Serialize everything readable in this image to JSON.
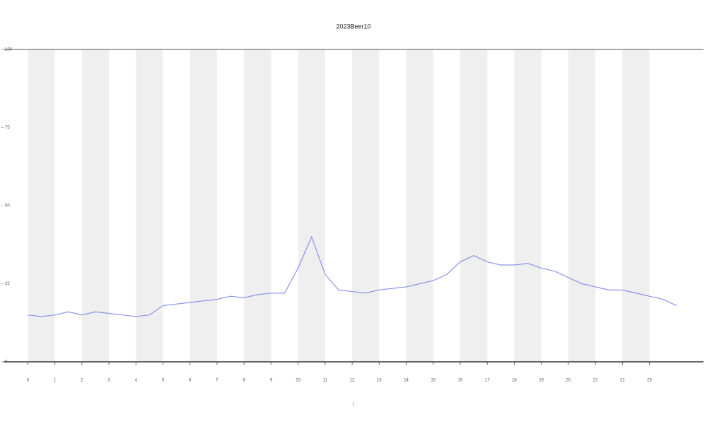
{
  "chart_data": {
    "type": "line",
    "title": "2023Beer10",
    "x_label": "t",
    "xlim": [
      -0.9,
      25
    ],
    "xticks": [
      0,
      1,
      2,
      3,
      4,
      5,
      6,
      7,
      8,
      9,
      10,
      11,
      12,
      13,
      14,
      15,
      16,
      17,
      18,
      19,
      20,
      21,
      22,
      23
    ],
    "ylim": [
      0,
      100
    ],
    "yticks": [
      0,
      25,
      50,
      75,
      100
    ],
    "shaded_bands": true,
    "series": [
      {
        "color": "#6f78e8",
        "x": [
          0,
          0.5,
          1,
          1.5,
          2,
          2.5,
          3,
          3.5,
          4,
          4.5,
          5,
          5.5,
          6,
          6.5,
          7,
          7.5,
          8,
          8.5,
          9,
          9.5,
          10,
          10.5,
          11,
          11.5,
          12,
          12.5,
          13,
          13.5,
          14,
          14.5,
          15,
          15.5,
          16,
          16.5,
          17,
          17.5,
          18,
          18.5,
          19,
          19.5,
          20,
          20.5,
          21,
          21.5,
          22,
          22.5,
          23,
          23.5,
          24
        ],
        "values": [
          15,
          14.5,
          15,
          16,
          15,
          16,
          15.5,
          15,
          14.5,
          15,
          18,
          18.5,
          19,
          19.5,
          20,
          21,
          20.5,
          21.5,
          22,
          22,
          30,
          40,
          28,
          23,
          22.5,
          22,
          23,
          23.5,
          24,
          25,
          26,
          28,
          32,
          34,
          32,
          31,
          31,
          31.5,
          30,
          29,
          27,
          25,
          24,
          23,
          23,
          22,
          21,
          20,
          18
        ]
      }
    ]
  }
}
